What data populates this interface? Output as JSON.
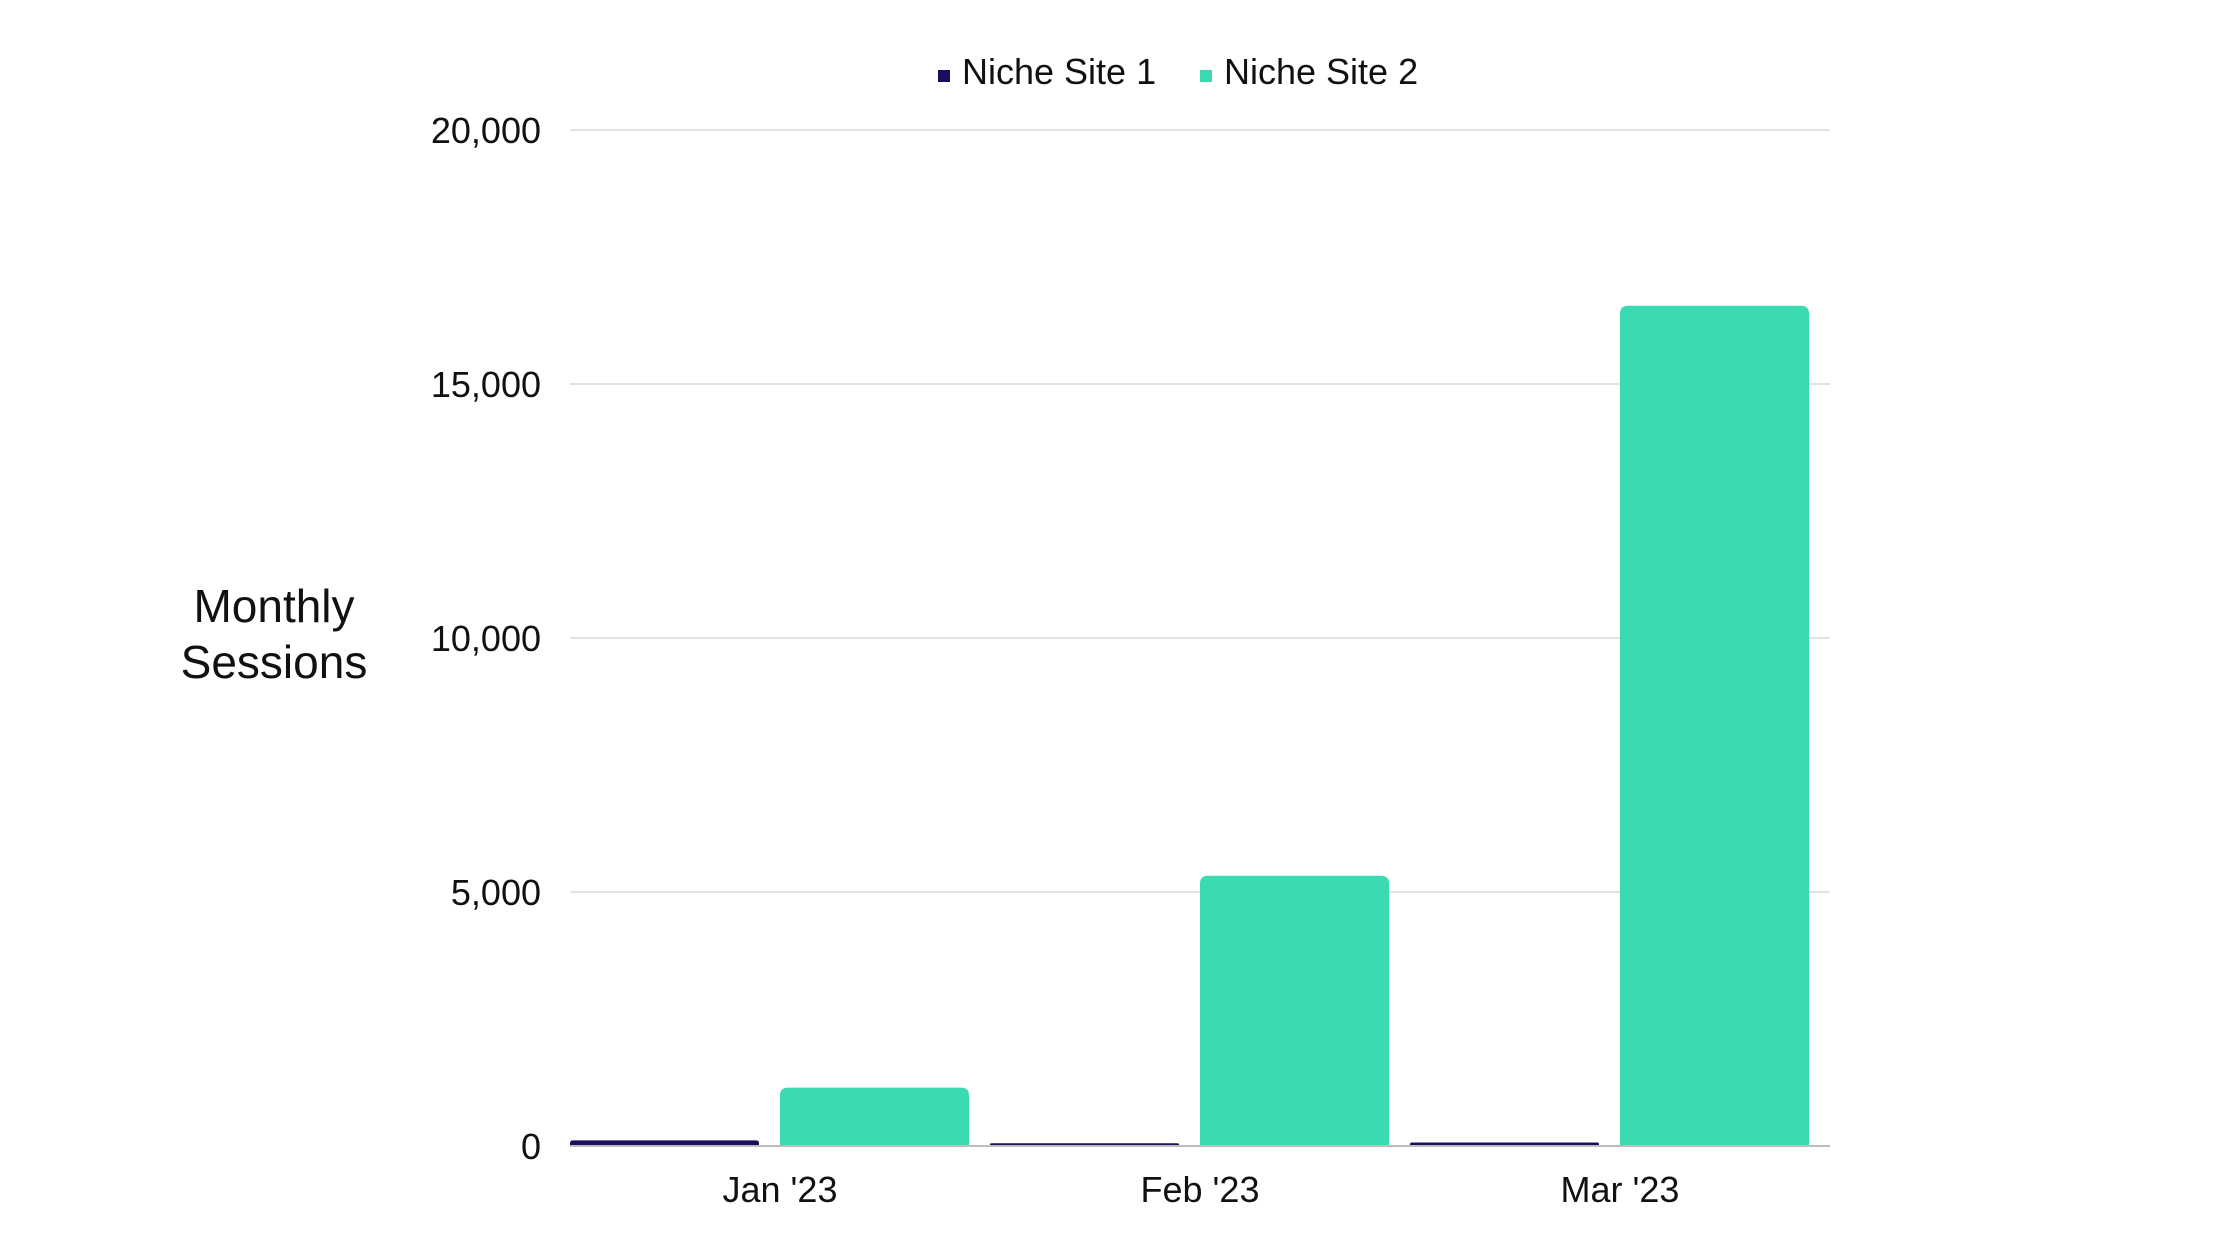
{
  "chart_data": {
    "type": "bar",
    "title": "",
    "xlabel": "",
    "ylabel_lines": [
      "Monthly",
      "Sessions"
    ],
    "categories": [
      "Jan '23",
      "Feb '23",
      "Mar '23"
    ],
    "series": [
      {
        "name": "Niche Site 1",
        "color": "#1a0f5c",
        "values": [
          110,
          55,
          70
        ]
      },
      {
        "name": "Niche Site 2",
        "color": "#3adbb3",
        "values": [
          1150,
          5320,
          16540
        ]
      }
    ],
    "ylim": [
      0,
      20000
    ],
    "yticks": [
      0,
      5000,
      10000,
      15000,
      20000
    ],
    "ytick_labels": [
      "0",
      "5,000",
      "10,000",
      "15,000",
      "20,000"
    ],
    "grid": true,
    "legend_position": "top-center"
  }
}
